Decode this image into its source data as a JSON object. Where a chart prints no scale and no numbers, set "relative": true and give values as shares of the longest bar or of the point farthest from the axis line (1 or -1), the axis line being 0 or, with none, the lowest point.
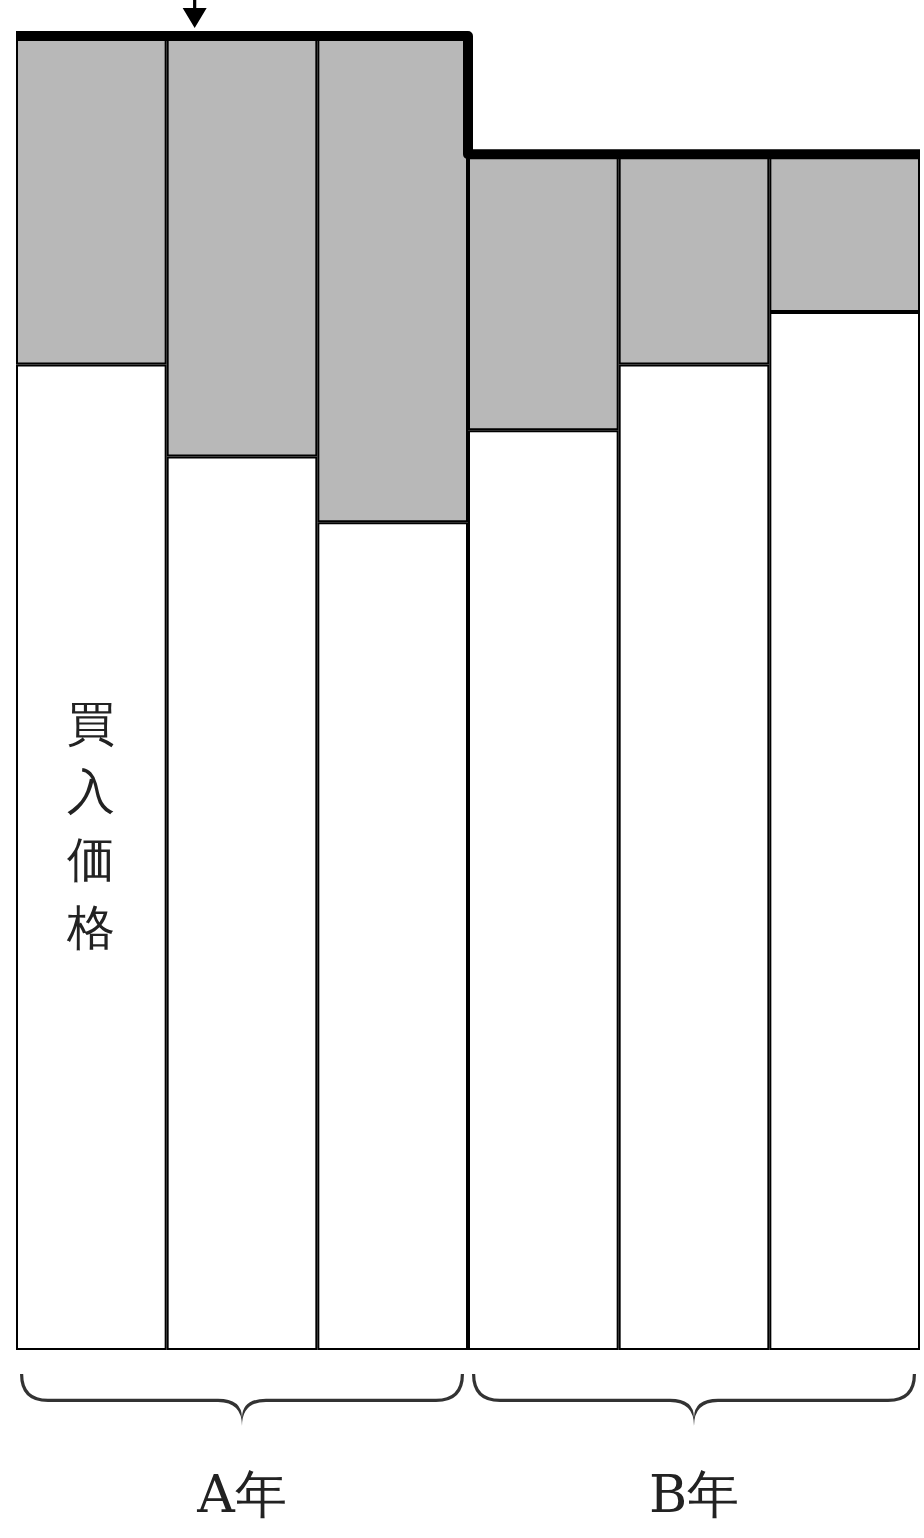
{
  "chart_data": {
    "type": "bar",
    "relative": true,
    "stacked": true,
    "categories": [
      null,
      "A年",
      null,
      null,
      "B年",
      null
    ],
    "series": [
      {
        "color": "#ffffff",
        "values": [
          0.75,
          0.68,
          0.63,
          0.7,
          0.75,
          0.79
        ]
      },
      {
        "color": "#b8b8b8",
        "values": [
          0.25,
          0.32,
          0.37,
          0.21,
          0.16,
          0.12
        ]
      }
    ],
    "annotations": [
      "買入価格"
    ]
  }
}
